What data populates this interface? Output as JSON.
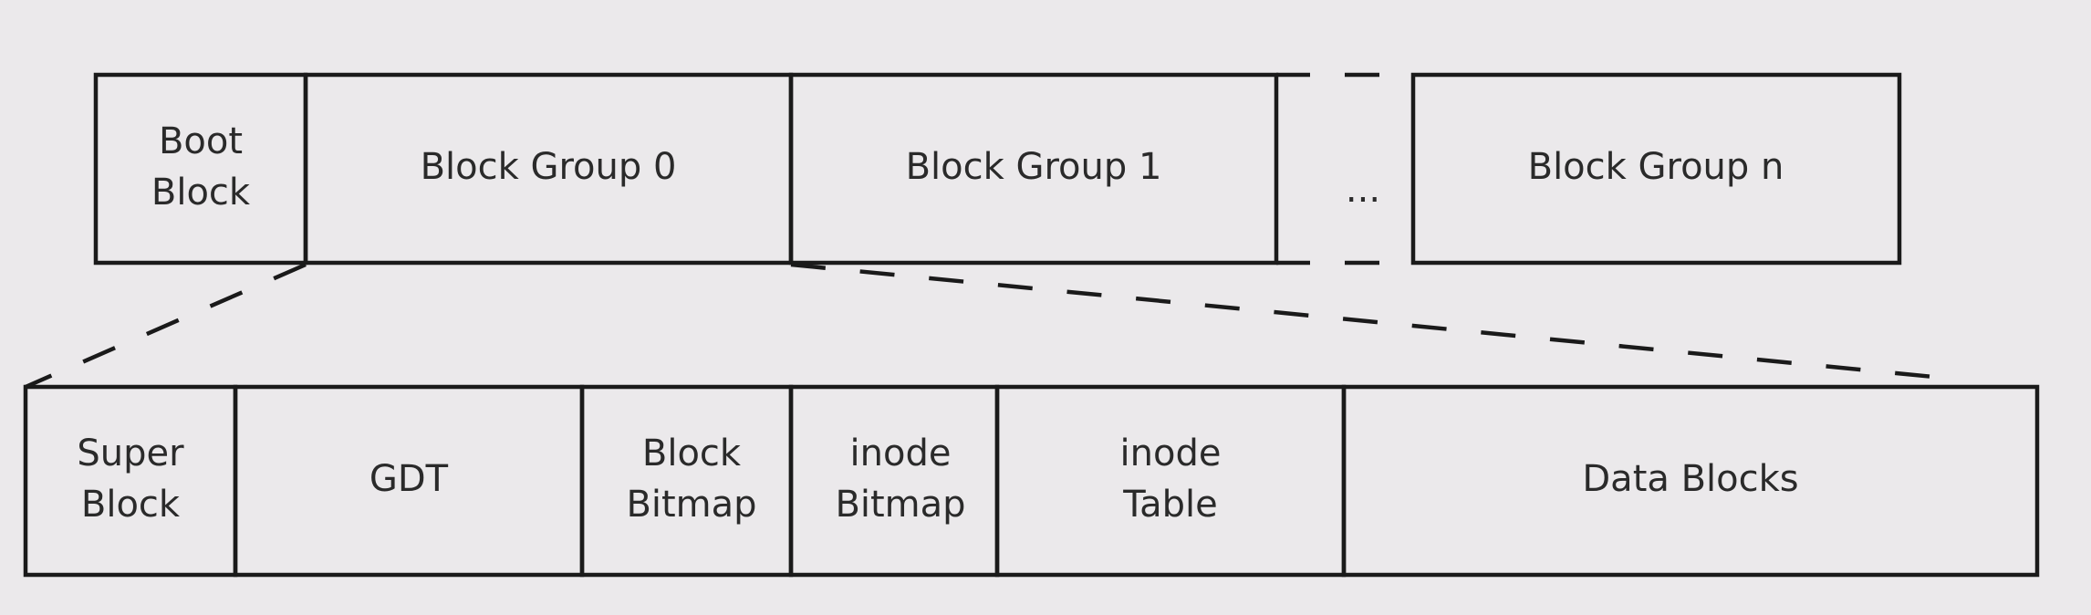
{
  "top_row": {
    "boot_block": [
      "Boot",
      "Block"
    ],
    "block_group_0": "Block Group 0",
    "block_group_1": "Block Group 1",
    "ellipsis": "...",
    "block_group_n": "Block Group n"
  },
  "bottom_row": {
    "super_block": [
      "Super",
      "Block"
    ],
    "gdt": "GDT",
    "block_bitmap": [
      "Block",
      "Bitmap"
    ],
    "inode_bitmap": [
      "inode",
      "Bitmap"
    ],
    "inode_table": [
      "inode",
      "Table"
    ],
    "data_blocks": "Data Blocks"
  }
}
